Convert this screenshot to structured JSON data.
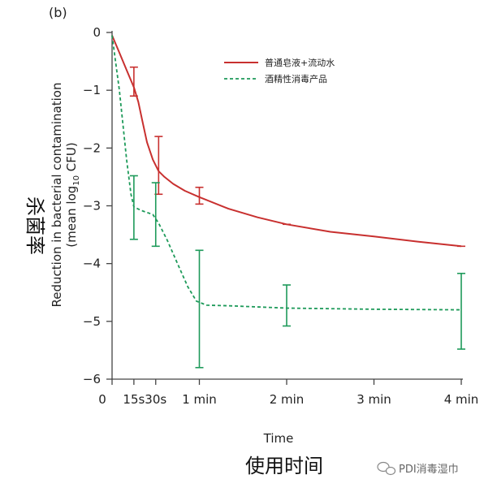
{
  "panel_label": "(b)",
  "chart_annotations": {
    "x_big_label": "使用时间",
    "y_big_label": "杀菌率"
  },
  "watermark": {
    "text": "PDI消毒湿巾",
    "icon": "wechat-bubble-icon"
  },
  "colors": {
    "soap": "#c8302f",
    "alcohol": "#1e9a5a",
    "axis": "#444444"
  },
  "chart_data": {
    "type": "line",
    "title": "",
    "xlabel": "Time",
    "ylabel_line1": "Reduction in bacterial contamination",
    "ylabel_line2_pre": "(mean log",
    "ylabel_line2_sub": "10",
    "ylabel_line2_post": " CFU)",
    "xlim": [
      0,
      240
    ],
    "ylim": [
      -6,
      0
    ],
    "x_ticks": [
      {
        "value": 0,
        "label": "0"
      },
      {
        "value": 15,
        "label": "15s"
      },
      {
        "value": 30,
        "label": "30s"
      },
      {
        "value": 60,
        "label": "1 min"
      },
      {
        "value": 120,
        "label": "2 min"
      },
      {
        "value": 180,
        "label": "3 min"
      },
      {
        "value": 240,
        "label": "4 min"
      }
    ],
    "y_ticks": [
      {
        "value": 0,
        "label": "0"
      },
      {
        "value": -1,
        "label": "−1"
      },
      {
        "value": -2,
        "label": "−2"
      },
      {
        "value": -3,
        "label": "−3"
      },
      {
        "value": -4,
        "label": "−4"
      },
      {
        "value": -5,
        "label": "−5"
      },
      {
        "value": -6,
        "label": "−6"
      }
    ],
    "legend_position": "top-right",
    "series": [
      {
        "name": "普通皂液+流动水",
        "style": "solid",
        "color": "#c8302f",
        "x": [
          0,
          5,
          10,
          15,
          18,
          21,
          24,
          28,
          32,
          36,
          42,
          50,
          60,
          80,
          100,
          120,
          150,
          180,
          210,
          240
        ],
        "y": [
          -0.05,
          -0.35,
          -0.65,
          -0.95,
          -1.2,
          -1.55,
          -1.9,
          -2.2,
          -2.4,
          -2.5,
          -2.62,
          -2.74,
          -2.85,
          -3.05,
          -3.2,
          -3.32,
          -3.45,
          -3.53,
          -3.62,
          -3.7
        ],
        "error_bars": [
          {
            "x": 15,
            "y": -0.85,
            "low": -1.1,
            "high": -0.6
          },
          {
            "x": 32,
            "y": -2.3,
            "low": -2.8,
            "high": -1.8
          },
          {
            "x": 60,
            "y": -2.83,
            "low": -2.97,
            "high": -2.68
          },
          {
            "x": 120,
            "y": -3.32,
            "low": -3.32,
            "high": -3.32
          },
          {
            "x": 240,
            "y": -3.7,
            "low": -3.7,
            "high": -3.7
          }
        ]
      },
      {
        "name": "酒精性消毒产品",
        "style": "dashed",
        "color": "#1e9a5a",
        "x": [
          0,
          5,
          10,
          13,
          15,
          20,
          28,
          32,
          38,
          45,
          52,
          58,
          65,
          80,
          120,
          180,
          240
        ],
        "y": [
          -0.05,
          -1.0,
          -2.2,
          -2.8,
          -3.02,
          -3.08,
          -3.15,
          -3.3,
          -3.6,
          -4.0,
          -4.4,
          -4.65,
          -4.72,
          -4.73,
          -4.77,
          -4.79,
          -4.8
        ],
        "error_bars": [
          {
            "x": 15,
            "y": -3.02,
            "low": -3.58,
            "high": -2.48
          },
          {
            "x": 30,
            "y": -3.15,
            "low": -3.7,
            "high": -2.6
          },
          {
            "x": 60,
            "y": -4.78,
            "low": -5.8,
            "high": -3.77
          },
          {
            "x": 120,
            "y": -4.73,
            "low": -5.08,
            "high": -4.37
          },
          {
            "x": 240,
            "y": -4.82,
            "low": -5.48,
            "high": -4.17
          }
        ]
      }
    ]
  }
}
